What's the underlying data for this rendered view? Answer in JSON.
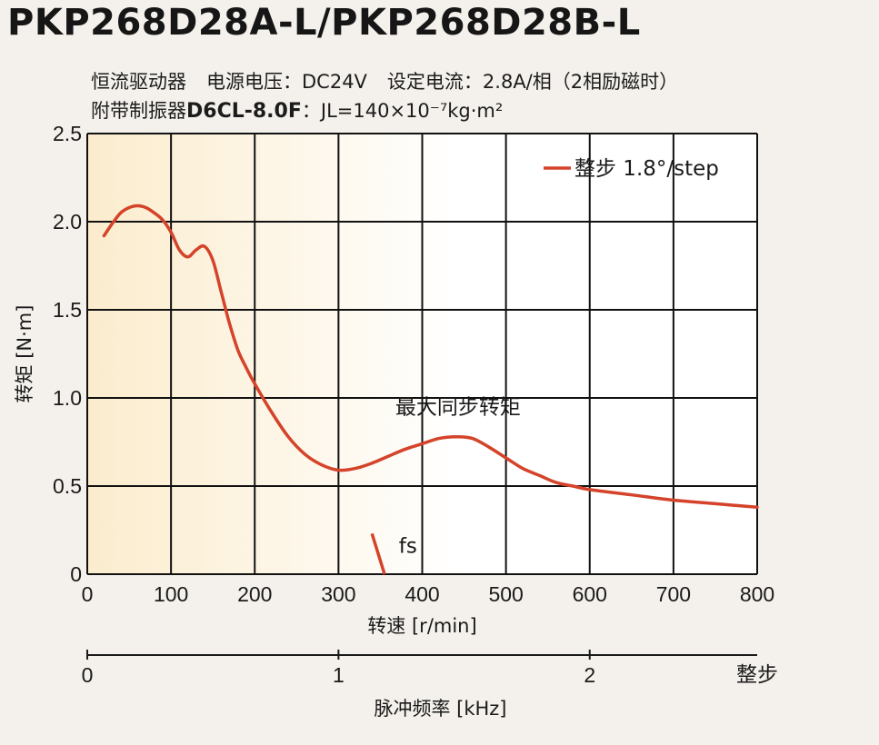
{
  "title": "PKP268D28A-L/PKP268D28B-L",
  "spec": {
    "driver": "恒流驱动器",
    "voltage_label": "电源电压：",
    "voltage_value": "DC24V",
    "current_label": "设定电流：",
    "current_value": "2.8A/相（2相励磁时）",
    "damper_label": "附带制振器",
    "damper_model": "D6CL-8.0F",
    "inertia_sep": "：",
    "inertia_value": "JL=140×10⁻⁷kg·m²"
  },
  "colors": {
    "curve": "#d4432a",
    "grid": "#111111",
    "plot_bg_left": "#fbeccd",
    "plot_bg_right": "#ffffff"
  },
  "chart_data": {
    "type": "line",
    "xlabel": "转速 [r/min]",
    "ylabel": "转矩 [N·m]",
    "x_ticks": [
      "0",
      "100",
      "200",
      "300",
      "400",
      "500",
      "600",
      "700",
      "800"
    ],
    "y_ticks": [
      "0",
      "0.5",
      "1.0",
      "1.5",
      "2.0",
      "2.5"
    ],
    "xlim": [
      0,
      800
    ],
    "ylim": [
      0,
      2.5
    ],
    "grid": true,
    "legend_position": "top-right",
    "series": [
      {
        "name": "整步 1.8°/step",
        "x": [
          20,
          30,
          40,
          50,
          60,
          70,
          80,
          90,
          100,
          110,
          120,
          130,
          140,
          150,
          160,
          170,
          180,
          190,
          200,
          220,
          240,
          260,
          280,
          300,
          320,
          340,
          360,
          380,
          400,
          420,
          440,
          460,
          480,
          500,
          520,
          540,
          560,
          580,
          600,
          650,
          700,
          750,
          800
        ],
        "y": [
          1.92,
          1.99,
          2.05,
          2.08,
          2.09,
          2.08,
          2.05,
          2.01,
          1.94,
          1.84,
          1.8,
          1.84,
          1.86,
          1.78,
          1.6,
          1.42,
          1.27,
          1.17,
          1.08,
          0.92,
          0.78,
          0.68,
          0.62,
          0.59,
          0.6,
          0.63,
          0.67,
          0.71,
          0.74,
          0.77,
          0.78,
          0.77,
          0.72,
          0.66,
          0.6,
          0.56,
          0.52,
          0.5,
          0.48,
          0.45,
          0.42,
          0.4,
          0.38
        ]
      }
    ],
    "annotations": [
      {
        "text": "最大同步转矩",
        "x": 395,
        "y": 0.95
      },
      {
        "text": "fs",
        "x": 320,
        "y": 0.1
      }
    ],
    "fs_marker": {
      "x": [
        340,
        355
      ],
      "y": [
        0.23,
        0.0
      ]
    },
    "secondary_axis": {
      "label": "脉冲频率 [kHz]",
      "ticks": [
        "0",
        "1",
        "2"
      ],
      "tick_values": [
        0,
        1,
        2
      ],
      "end_label": "整步",
      "per_khz_rpm": 300
    }
  }
}
